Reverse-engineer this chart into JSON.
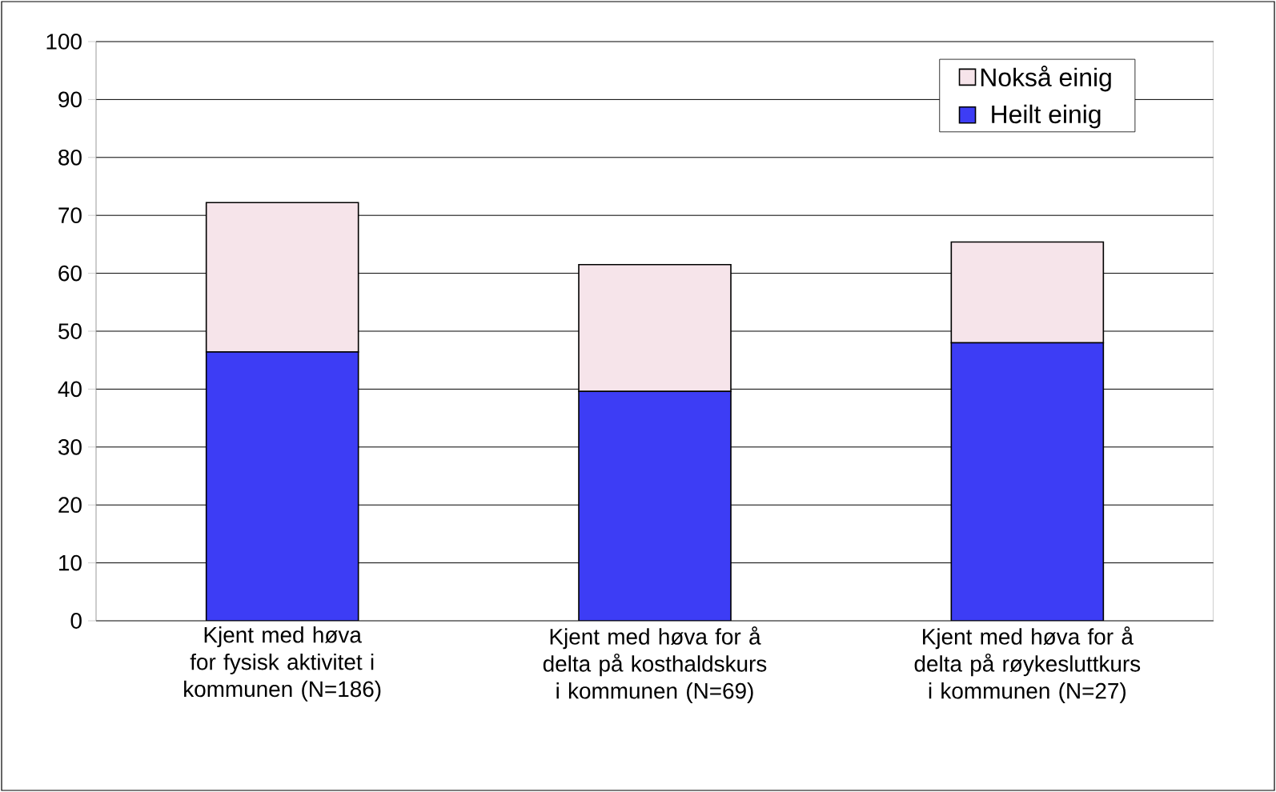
{
  "chart_data": {
    "type": "bar",
    "stacked": true,
    "categories": [
      "Kjent med høva for fysisk aktivitet i kommunen (N=186)",
      "Kjent med høva for å delta på kosthaldskurs i kommunen (N=69)",
      "Kjent med høva for å delta på røykesluttkurs i kommunen (N=27)"
    ],
    "series": [
      {
        "name": "Heilt einig",
        "color": "#3d3df5",
        "values": [
          46.4,
          39.6,
          48.0
        ]
      },
      {
        "name": "Nokså einig",
        "color": "#f6e4ea",
        "values": [
          25.8,
          21.9,
          17.4
        ]
      }
    ],
    "ylim": [
      0,
      100
    ],
    "yticks": [
      0,
      10,
      20,
      30,
      40,
      50,
      60,
      70,
      80,
      90,
      100
    ],
    "grid": "y",
    "legend": "top right"
  }
}
